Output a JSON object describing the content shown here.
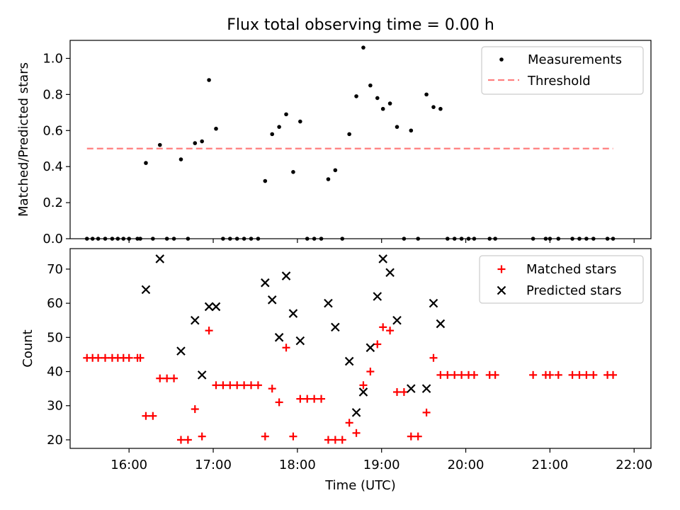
{
  "chart_data": [
    {
      "type": "scatter",
      "title": "Flux total observing time = 0.00 h",
      "xlabel": "",
      "ylabel": "Matched/Predicted stars",
      "ylim": [
        0.0,
        1.1
      ],
      "yticks": [
        "0.0",
        "0.2",
        "0.4",
        "0.6",
        "0.8",
        "1.0"
      ],
      "xlim": [
        "15:18",
        "22:12"
      ],
      "legend_position": "top-right",
      "threshold": {
        "value": 0.5,
        "x_start": "15:30",
        "x_end": "21:45",
        "color": "#ff7f7f"
      },
      "legend": [
        "Measurements",
        "Threshold"
      ],
      "points": [
        {
          "x": "15:30",
          "y": 0.0
        },
        {
          "x": "15:34",
          "y": 0.0
        },
        {
          "x": "15:38",
          "y": 0.0
        },
        {
          "x": "15:43",
          "y": 0.0
        },
        {
          "x": "15:48",
          "y": 0.0
        },
        {
          "x": "15:52",
          "y": 0.0
        },
        {
          "x": "15:56",
          "y": 0.0
        },
        {
          "x": "16:00",
          "y": 0.0
        },
        {
          "x": "16:06",
          "y": 0.0
        },
        {
          "x": "16:08",
          "y": 0.0
        },
        {
          "x": "16:12",
          "y": 0.42
        },
        {
          "x": "16:17",
          "y": 0.0
        },
        {
          "x": "16:22",
          "y": 0.52
        },
        {
          "x": "16:27",
          "y": 0.0
        },
        {
          "x": "16:32",
          "y": 0.0
        },
        {
          "x": "16:37",
          "y": 0.44
        },
        {
          "x": "16:42",
          "y": 0.0
        },
        {
          "x": "16:47",
          "y": 0.53
        },
        {
          "x": "16:52",
          "y": 0.54
        },
        {
          "x": "16:57",
          "y": 0.88
        },
        {
          "x": "17:02",
          "y": 0.61
        },
        {
          "x": "17:07",
          "y": 0.0
        },
        {
          "x": "17:12",
          "y": 0.0
        },
        {
          "x": "17:17",
          "y": 0.0
        },
        {
          "x": "17:22",
          "y": 0.0
        },
        {
          "x": "17:27",
          "y": 0.0
        },
        {
          "x": "17:32",
          "y": 0.0
        },
        {
          "x": "17:37",
          "y": 0.32
        },
        {
          "x": "17:42",
          "y": 0.58
        },
        {
          "x": "17:47",
          "y": 0.62
        },
        {
          "x": "17:52",
          "y": 0.69
        },
        {
          "x": "17:57",
          "y": 0.37
        },
        {
          "x": "18:02",
          "y": 0.65
        },
        {
          "x": "18:07",
          "y": 0.0
        },
        {
          "x": "18:12",
          "y": 0.0
        },
        {
          "x": "18:17",
          "y": 0.0
        },
        {
          "x": "18:22",
          "y": 0.33
        },
        {
          "x": "18:27",
          "y": 0.38
        },
        {
          "x": "18:32",
          "y": 0.0
        },
        {
          "x": "18:37",
          "y": 0.58
        },
        {
          "x": "18:42",
          "y": 0.79
        },
        {
          "x": "18:47",
          "y": 1.06
        },
        {
          "x": "18:52",
          "y": 0.85
        },
        {
          "x": "18:57",
          "y": 0.78
        },
        {
          "x": "19:01",
          "y": 0.72
        },
        {
          "x": "19:06",
          "y": 0.75
        },
        {
          "x": "19:11",
          "y": 0.62
        },
        {
          "x": "19:16",
          "y": 0.0
        },
        {
          "x": "19:21",
          "y": 0.6
        },
        {
          "x": "19:26",
          "y": 0.0
        },
        {
          "x": "19:32",
          "y": 0.8
        },
        {
          "x": "19:37",
          "y": 0.73
        },
        {
          "x": "19:42",
          "y": 0.72
        },
        {
          "x": "19:47",
          "y": 0.0
        },
        {
          "x": "19:52",
          "y": 0.0
        },
        {
          "x": "19:57",
          "y": 0.0
        },
        {
          "x": "20:02",
          "y": 0.0
        },
        {
          "x": "20:06",
          "y": 0.0
        },
        {
          "x": "20:17",
          "y": 0.0
        },
        {
          "x": "20:21",
          "y": 0.0
        },
        {
          "x": "20:48",
          "y": 0.0
        },
        {
          "x": "20:57",
          "y": 0.0
        },
        {
          "x": "21:00",
          "y": 0.0
        },
        {
          "x": "21:06",
          "y": 0.0
        },
        {
          "x": "21:16",
          "y": 0.0
        },
        {
          "x": "21:21",
          "y": 0.0
        },
        {
          "x": "21:26",
          "y": 0.0
        },
        {
          "x": "21:31",
          "y": 0.0
        },
        {
          "x": "21:41",
          "y": 0.0
        },
        {
          "x": "21:45",
          "y": 0.0
        }
      ]
    },
    {
      "type": "scatter",
      "xlabel": "Time (UTC)",
      "ylabel": "Count",
      "ylim": [
        17.5,
        76
      ],
      "yticks": [
        "20",
        "30",
        "40",
        "50",
        "60",
        "70"
      ],
      "xlim": [
        "15:18",
        "22:12"
      ],
      "xticks": [
        "16:00",
        "17:00",
        "18:00",
        "19:00",
        "20:00",
        "21:00",
        "22:00"
      ],
      "legend_position": "top-right",
      "series": [
        {
          "name": "Matched stars",
          "marker": "plus",
          "color": "#ff0000",
          "points": [
            {
              "x": "15:30",
              "y": 44
            },
            {
              "x": "15:34",
              "y": 44
            },
            {
              "x": "15:38",
              "y": 44
            },
            {
              "x": "15:43",
              "y": 44
            },
            {
              "x": "15:48",
              "y": 44
            },
            {
              "x": "15:52",
              "y": 44
            },
            {
              "x": "15:56",
              "y": 44
            },
            {
              "x": "16:00",
              "y": 44
            },
            {
              "x": "16:06",
              "y": 44
            },
            {
              "x": "16:08",
              "y": 44
            },
            {
              "x": "16:12",
              "y": 27
            },
            {
              "x": "16:17",
              "y": 27
            },
            {
              "x": "16:22",
              "y": 38
            },
            {
              "x": "16:27",
              "y": 38
            },
            {
              "x": "16:32",
              "y": 38
            },
            {
              "x": "16:37",
              "y": 20
            },
            {
              "x": "16:42",
              "y": 20
            },
            {
              "x": "16:47",
              "y": 29
            },
            {
              "x": "16:52",
              "y": 21
            },
            {
              "x": "16:57",
              "y": 52
            },
            {
              "x": "17:02",
              "y": 36
            },
            {
              "x": "17:07",
              "y": 36
            },
            {
              "x": "17:12",
              "y": 36
            },
            {
              "x": "17:17",
              "y": 36
            },
            {
              "x": "17:22",
              "y": 36
            },
            {
              "x": "17:27",
              "y": 36
            },
            {
              "x": "17:32",
              "y": 36
            },
            {
              "x": "17:37",
              "y": 21
            },
            {
              "x": "17:42",
              "y": 35
            },
            {
              "x": "17:47",
              "y": 31
            },
            {
              "x": "17:52",
              "y": 47
            },
            {
              "x": "17:57",
              "y": 21
            },
            {
              "x": "18:02",
              "y": 32
            },
            {
              "x": "18:07",
              "y": 32
            },
            {
              "x": "18:12",
              "y": 32
            },
            {
              "x": "18:17",
              "y": 32
            },
            {
              "x": "18:22",
              "y": 20
            },
            {
              "x": "18:27",
              "y": 20
            },
            {
              "x": "18:32",
              "y": 20
            },
            {
              "x": "18:37",
              "y": 25
            },
            {
              "x": "18:42",
              "y": 22
            },
            {
              "x": "18:47",
              "y": 36
            },
            {
              "x": "18:52",
              "y": 40
            },
            {
              "x": "18:57",
              "y": 48
            },
            {
              "x": "19:01",
              "y": 53
            },
            {
              "x": "19:06",
              "y": 52
            },
            {
              "x": "19:11",
              "y": 34
            },
            {
              "x": "19:16",
              "y": 34
            },
            {
              "x": "19:21",
              "y": 21
            },
            {
              "x": "19:26",
              "y": 21
            },
            {
              "x": "19:32",
              "y": 28
            },
            {
              "x": "19:37",
              "y": 44
            },
            {
              "x": "19:42",
              "y": 39
            },
            {
              "x": "19:47",
              "y": 39
            },
            {
              "x": "19:52",
              "y": 39
            },
            {
              "x": "19:57",
              "y": 39
            },
            {
              "x": "20:02",
              "y": 39
            },
            {
              "x": "20:06",
              "y": 39
            },
            {
              "x": "20:17",
              "y": 39
            },
            {
              "x": "20:21",
              "y": 39
            },
            {
              "x": "20:48",
              "y": 39
            },
            {
              "x": "20:57",
              "y": 39
            },
            {
              "x": "21:00",
              "y": 39
            },
            {
              "x": "21:06",
              "y": 39
            },
            {
              "x": "21:16",
              "y": 39
            },
            {
              "x": "21:21",
              "y": 39
            },
            {
              "x": "21:26",
              "y": 39
            },
            {
              "x": "21:31",
              "y": 39
            },
            {
              "x": "21:41",
              "y": 39
            },
            {
              "x": "21:45",
              "y": 39
            }
          ]
        },
        {
          "name": "Predicted stars",
          "marker": "x",
          "color": "#000000",
          "points": [
            {
              "x": "16:12",
              "y": 64
            },
            {
              "x": "16:22",
              "y": 73
            },
            {
              "x": "16:37",
              "y": 46
            },
            {
              "x": "16:47",
              "y": 55
            },
            {
              "x": "16:52",
              "y": 39
            },
            {
              "x": "16:57",
              "y": 59
            },
            {
              "x": "17:02",
              "y": 59
            },
            {
              "x": "17:37",
              "y": 66
            },
            {
              "x": "17:42",
              "y": 61
            },
            {
              "x": "17:47",
              "y": 50
            },
            {
              "x": "17:52",
              "y": 68
            },
            {
              "x": "17:57",
              "y": 57
            },
            {
              "x": "18:02",
              "y": 49
            },
            {
              "x": "18:22",
              "y": 60
            },
            {
              "x": "18:27",
              "y": 53
            },
            {
              "x": "18:37",
              "y": 43
            },
            {
              "x": "18:42",
              "y": 28
            },
            {
              "x": "18:47",
              "y": 34
            },
            {
              "x": "18:52",
              "y": 47
            },
            {
              "x": "18:57",
              "y": 62
            },
            {
              "x": "19:01",
              "y": 73
            },
            {
              "x": "19:06",
              "y": 69
            },
            {
              "x": "19:11",
              "y": 55
            },
            {
              "x": "19:21",
              "y": 35
            },
            {
              "x": "19:32",
              "y": 35
            },
            {
              "x": "19:37",
              "y": 60
            },
            {
              "x": "19:42",
              "y": 54
            }
          ]
        }
      ]
    }
  ]
}
